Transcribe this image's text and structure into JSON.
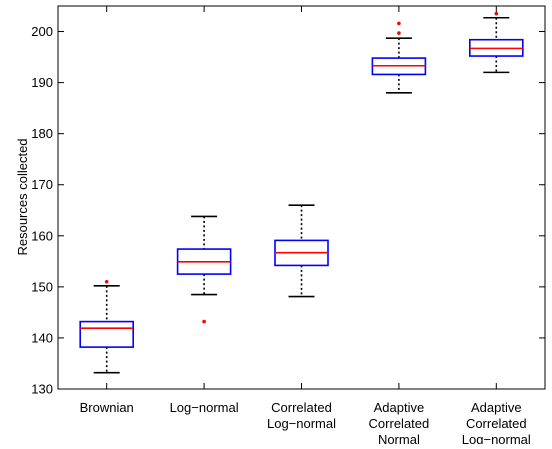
{
  "chart_data": {
    "type": "box",
    "title": "",
    "xlabel": "",
    "ylabel": "Resources collected",
    "ylim": [
      130,
      205
    ],
    "yticks": [
      130,
      140,
      150,
      160,
      170,
      180,
      190,
      200
    ],
    "grid": false,
    "legend": "none",
    "categories": [
      [
        "Brownian"
      ],
      [
        "Log−normal"
      ],
      [
        "Correlated",
        "Log−normal"
      ],
      [
        "Adaptive",
        "Correlated",
        "Normal"
      ],
      [
        "Adaptive",
        "Correlated",
        "Log−normal"
      ]
    ],
    "boxes": [
      {
        "whisker_low": 133.2,
        "q1": 138.2,
        "median": 141.9,
        "q3": 143.2,
        "whisker_high": 150.2,
        "outliers": [
          151.0
        ]
      },
      {
        "whisker_low": 148.5,
        "q1": 152.5,
        "median": 154.9,
        "q3": 157.4,
        "whisker_high": 163.8,
        "outliers": [
          143.2
        ]
      },
      {
        "whisker_low": 148.1,
        "q1": 154.2,
        "median": 156.7,
        "q3": 159.1,
        "whisker_high": 166.0,
        "outliers": []
      },
      {
        "whisker_low": 188.0,
        "q1": 191.6,
        "median": 193.3,
        "q3": 194.8,
        "whisker_high": 198.7,
        "outliers": [
          199.7,
          201.6
        ]
      },
      {
        "whisker_low": 192.0,
        "q1": 195.2,
        "median": 196.7,
        "q3": 198.4,
        "whisker_high": 202.7,
        "outliers": [
          203.5
        ]
      }
    ],
    "colors": {
      "box": "#0000ff",
      "median": "#ff0000",
      "whisker": "#000000",
      "outlier": "#ff0000"
    }
  }
}
